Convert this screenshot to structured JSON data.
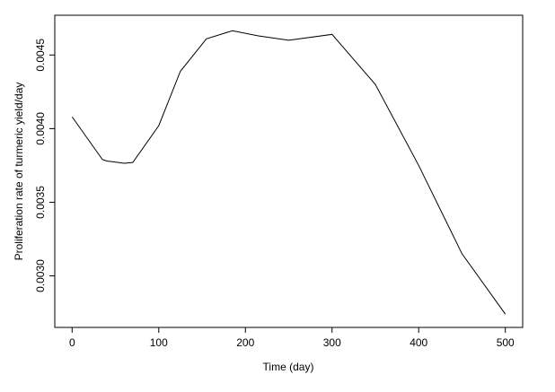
{
  "chart_data": {
    "type": "line",
    "x_label": "Time (day)",
    "y_label": "Proliferation rate of turmeric yield/day",
    "x": [
      0,
      35,
      40,
      60,
      70,
      100,
      125,
      155,
      185,
      215,
      250,
      300,
      350,
      400,
      450,
      500
    ],
    "series": [
      {
        "color": "#000000",
        "values": [
          0.00408,
          0.00379,
          0.00378,
          0.003765,
          0.00377,
          0.00402,
          0.00439,
          0.00461,
          0.004665,
          0.00463,
          0.0046,
          0.00464,
          0.0043,
          0.00375,
          0.00315,
          0.00274
        ]
      }
    ],
    "xlim": [
      -20,
      520
    ],
    "ylim": [
      0.00265,
      0.00477
    ],
    "xticks": [
      0,
      100,
      200,
      300,
      400,
      500
    ],
    "yticks": [
      {
        "value": 0.003,
        "label": "0.0030"
      },
      {
        "value": 0.0035,
        "label": "0.0035"
      },
      {
        "value": 0.004,
        "label": "0.0040"
      },
      {
        "value": 0.0045,
        "label": "0.0045"
      }
    ],
    "grid": false
  }
}
